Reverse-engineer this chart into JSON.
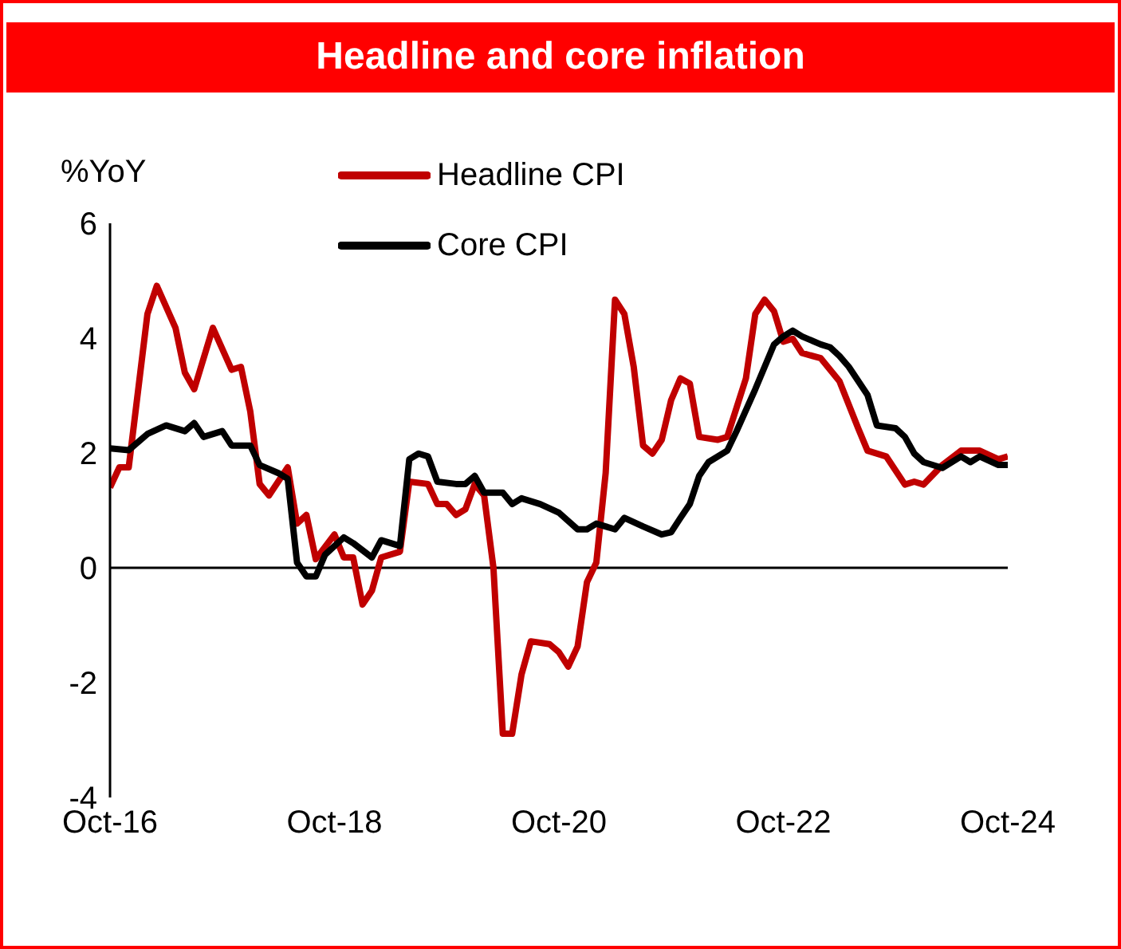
{
  "chart_data": {
    "type": "line",
    "title": "Headline and core inflation",
    "ylabel": "%YoY",
    "xlim": [
      "2016-10",
      "2024-10"
    ],
    "xticks": [
      {
        "value": "2016-10",
        "label": "Oct-16"
      },
      {
        "value": "2018-10",
        "label": "Oct-18"
      },
      {
        "value": "2020-10",
        "label": "Oct-20"
      },
      {
        "value": "2022-10",
        "label": "Oct-22"
      },
      {
        "value": "2024-10",
        "label": "Oct-24"
      }
    ],
    "ylim": [
      -4,
      6
    ],
    "yticks": [
      -4,
      -2,
      0,
      2,
      4,
      6
    ],
    "grid": false,
    "legend": "top",
    "marker": "none",
    "line_style": "solid",
    "ref_lines": [
      {
        "axis": "y",
        "value": 0,
        "color": "#000000"
      }
    ],
    "series": [
      {
        "name": "Headline CPI",
        "color": "#c00000",
        "x": [
          "2016-10",
          "2016-11",
          "2016-12",
          "2017-02",
          "2017-03",
          "2017-05",
          "2017-06",
          "2017-07",
          "2017-09",
          "2017-11",
          "2017-12",
          "2018-01",
          "2018-02",
          "2018-03",
          "2018-05",
          "2018-06",
          "2018-07",
          "2018-08",
          "2018-10",
          "2018-11",
          "2018-12",
          "2019-01",
          "2019-02",
          "2019-03",
          "2019-05",
          "2019-06",
          "2019-08",
          "2019-09",
          "2019-10",
          "2019-11",
          "2019-12",
          "2020-01",
          "2020-02",
          "2020-03",
          "2020-04",
          "2020-05",
          "2020-06",
          "2020-07",
          "2020-09",
          "2020-10",
          "2020-11",
          "2020-12",
          "2021-01",
          "2021-02",
          "2021-03",
          "2021-04",
          "2021-05",
          "2021-06",
          "2021-07",
          "2021-08",
          "2021-09",
          "2021-10",
          "2021-11",
          "2021-12",
          "2022-01",
          "2022-03",
          "2022-04",
          "2022-06",
          "2022-07",
          "2022-08",
          "2022-09",
          "2022-10",
          "2022-11",
          "2022-12",
          "2023-02",
          "2023-04",
          "2023-06",
          "2023-07",
          "2023-09",
          "2023-11",
          "2023-12",
          "2024-01",
          "2024-03",
          "2024-05",
          "2024-07",
          "2024-09",
          "2024-10"
        ],
        "values": [
          1.4,
          1.75,
          1.75,
          4.42,
          4.91,
          4.18,
          3.4,
          3.11,
          4.18,
          3.45,
          3.5,
          2.72,
          1.46,
          1.26,
          1.75,
          0.77,
          0.92,
          0.15,
          0.58,
          0.18,
          0.18,
          -0.64,
          -0.4,
          0.18,
          0.28,
          1.5,
          1.46,
          1.11,
          1.11,
          0.92,
          1.02,
          1.46,
          1.26,
          0,
          -2.89,
          -2.89,
          -1.86,
          -1.28,
          -1.33,
          -1.47,
          -1.72,
          -1.37,
          -0.25,
          0.09,
          1.65,
          4.67,
          4.42,
          3.5,
          2.13,
          1.99,
          2.23,
          2.92,
          3.3,
          3.21,
          2.28,
          2.23,
          2.28,
          3.3,
          4.42,
          4.67,
          4.47,
          3.94,
          3.99,
          3.74,
          3.65,
          3.25,
          2.43,
          2.04,
          1.94,
          1.45,
          1.5,
          1.45,
          1.79,
          2.04,
          2.04,
          1.89,
          1.94
        ]
      },
      {
        "name": "Core CPI",
        "color": "#000000",
        "x": [
          "2016-10",
          "2016-12",
          "2017-02",
          "2017-04",
          "2017-06",
          "2017-07",
          "2017-08",
          "2017-10",
          "2017-11",
          "2018-01",
          "2018-02",
          "2018-04",
          "2018-05",
          "2018-06",
          "2018-07",
          "2018-08",
          "2018-09",
          "2018-11",
          "2018-12",
          "2019-02",
          "2019-03",
          "2019-05",
          "2019-06",
          "2019-07",
          "2019-08",
          "2019-09",
          "2019-11",
          "2019-12",
          "2020-01",
          "2020-02",
          "2020-04",
          "2020-05",
          "2020-06",
          "2020-08",
          "2020-10",
          "2020-12",
          "2021-01",
          "2021-02",
          "2021-04",
          "2021-05",
          "2021-07",
          "2021-09",
          "2021-10",
          "2021-11",
          "2021-12",
          "2022-01",
          "2022-02",
          "2022-04",
          "2022-05",
          "2022-07",
          "2022-09",
          "2022-10",
          "2022-11",
          "2022-12",
          "2023-02",
          "2023-03",
          "2023-04",
          "2023-05",
          "2023-07",
          "2023-08",
          "2023-10",
          "2023-11",
          "2023-12",
          "2024-01",
          "2024-03",
          "2024-05",
          "2024-06",
          "2024-07",
          "2024-09",
          "2024-10"
        ],
        "values": [
          2.08,
          2.05,
          2.33,
          2.48,
          2.38,
          2.52,
          2.28,
          2.38,
          2.13,
          2.13,
          1.79,
          1.65,
          1.55,
          0.09,
          -0.15,
          -0.15,
          0.23,
          0.53,
          0.43,
          0.18,
          0.48,
          0.38,
          1.89,
          1.99,
          1.94,
          1.5,
          1.46,
          1.46,
          1.6,
          1.31,
          1.31,
          1.11,
          1.21,
          1.11,
          0.96,
          0.67,
          0.67,
          0.77,
          0.67,
          0.87,
          0.72,
          0.58,
          0.62,
          0.87,
          1.11,
          1.6,
          1.84,
          2.04,
          2.38,
          3.11,
          3.89,
          4.03,
          4.13,
          4.03,
          3.89,
          3.84,
          3.69,
          3.5,
          3.01,
          2.48,
          2.43,
          2.28,
          1.99,
          1.84,
          1.74,
          1.94,
          1.84,
          1.94,
          1.79,
          1.79
        ]
      }
    ]
  }
}
